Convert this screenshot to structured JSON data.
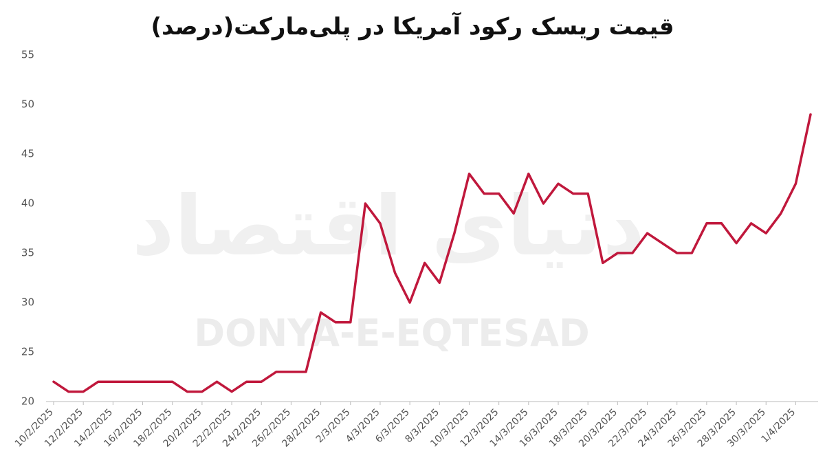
{
  "chart_data": {
    "type": "line",
    "title": "قیمت ریسک رکود آمریکا در پلی‌مارکت(درصد)",
    "watermark": "DONYA-E-EQTESAD",
    "watermark_fa": "دنیای اقتصاد",
    "categories": [
      "10/2/2025",
      null,
      "12/2/2025",
      null,
      "14/2/2025",
      null,
      "16/2/2025",
      null,
      "18/2/2025",
      null,
      "20/2/2025",
      null,
      "22/2/2025",
      null,
      "24/2/2025",
      null,
      "26/2/2025",
      null,
      "28/2/2025",
      null,
      "2/3/2025",
      null,
      "4/3/2025",
      null,
      "6/3/2025",
      null,
      "8/3/2025",
      null,
      "10/3/2025",
      null,
      "12/3/2025",
      null,
      "14/3/2025",
      null,
      "16/3/2025",
      null,
      "18/3/2025",
      null,
      "20/3/2025",
      null,
      "22/3/2025",
      null,
      "24/3/2025",
      null,
      "26/3/2025",
      null,
      "28/3/2025",
      null,
      "30/3/2025",
      null,
      "1/4/2025",
      null
    ],
    "values": [
      22,
      21,
      21,
      22,
      22,
      22,
      22,
      22,
      22,
      21,
      21,
      22,
      21,
      22,
      22,
      23,
      23,
      23,
      29,
      28,
      28,
      40,
      38,
      33,
      30,
      34,
      32,
      37,
      43,
      41,
      41,
      39,
      43,
      40,
      42,
      41,
      41,
      34,
      35,
      35,
      37,
      36,
      35,
      35,
      38,
      38,
      36,
      38,
      37,
      39,
      42,
      49
    ],
    "color": "#c0183c",
    "ylim": [
      20,
      55
    ],
    "yticks": [
      20,
      25,
      30,
      35,
      40,
      45,
      50,
      55
    ],
    "grid": false
  }
}
